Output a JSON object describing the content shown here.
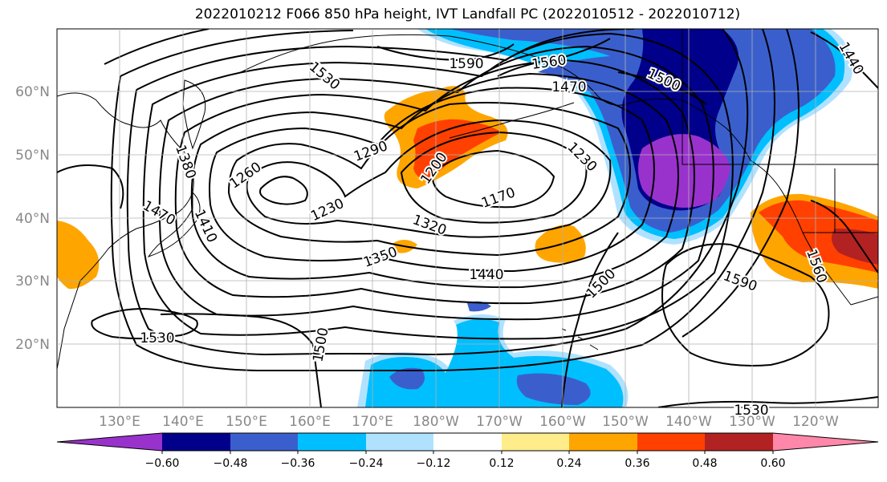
{
  "title": "2022010212 F066 850 hPa height, IVT Landfall PC (2022010512 - 2022010712)",
  "latitude_labels": [
    "60°N",
    "50°N",
    "40°N",
    "30°N",
    "20°N"
  ],
  "longitude_labels": [
    "130°E",
    "140°E",
    "150°E",
    "160°E",
    "170°E",
    "180°W",
    "170°W",
    "160°W",
    "150°W",
    "140°W",
    "130°W",
    "120°W"
  ],
  "colorbar": {
    "colors": [
      "#9932CC",
      "#00008B",
      "#3A5FCD",
      "#00BFFF",
      "#B0E2FF",
      "#FFFFFF",
      "#FFEC8B",
      "#FFA500",
      "#FF4000",
      "#B22222",
      "#FF88AA"
    ],
    "tick_labels": [
      "−0.60",
      "−0.48",
      "−0.36",
      "−0.24",
      "−0.12",
      "0.12",
      "0.24",
      "0.36",
      "0.48",
      "0.60"
    ]
  },
  "contour_labels": [
    "1590",
    "1560",
    "1470",
    "1500",
    "1440",
    "1530",
    "1380",
    "1260",
    "1290",
    "1200",
    "1230",
    "1230",
    "1170",
    "1470",
    "1410",
    "1320",
    "1350",
    "1440",
    "1500",
    "1590",
    "1560",
    "1530",
    "1500",
    "1530"
  ]
}
